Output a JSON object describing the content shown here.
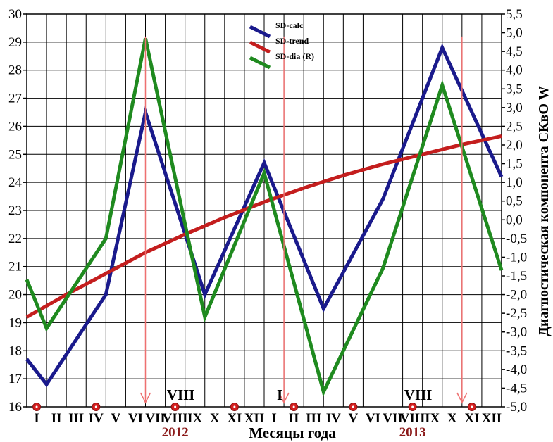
{
  "chart_data": {
    "type": "line",
    "xlabel": "Месяцы года",
    "y2label": "Диагностическая компонента СКвО W",
    "ylim": [
      16,
      30
    ],
    "y2lim": [
      -5.0,
      5.5
    ],
    "yticks": [
      "16",
      "17",
      "18",
      "19",
      "20",
      "21",
      "22",
      "23",
      "24",
      "25",
      "26",
      "27",
      "28",
      "29",
      "30"
    ],
    "y2ticks": [
      "-5,0",
      "-4,5",
      "-4,0",
      "-3,5",
      "-3,0",
      "-2,5",
      "-2,0",
      "-1,5",
      "-1,0",
      "-0,5",
      "0,0",
      "0,5",
      "1,0",
      "1,5",
      "2,0",
      "2,5",
      "3,0",
      "3,5",
      "4,0",
      "4,5",
      "5,0",
      "5,5"
    ],
    "months": [
      "I",
      "II",
      "III",
      "IV",
      "V",
      "VI",
      "VII",
      "VIII",
      "IX",
      "X",
      "XI",
      "XII",
      "I",
      "II",
      "III",
      "IV",
      "V",
      "VI",
      "VII",
      "VIII",
      "IX",
      "X",
      "XI",
      "XII"
    ],
    "years": [
      {
        "label": "2012",
        "month_index": 7
      },
      {
        "label": "2013",
        "month_index": 19
      }
    ],
    "month_annotations": [
      {
        "label": "VIII",
        "month_index": 7
      },
      {
        "label": "I",
        "month_index": 12
      },
      {
        "label": "VIII",
        "month_index": 19
      }
    ],
    "red_markers_month_index": [
      0,
      3,
      7,
      10,
      13,
      16,
      19,
      22
    ],
    "arrows_month_index": [
      6,
      13,
      22
    ],
    "legend_placement": "top-center",
    "grid": true,
    "series": [
      {
        "name": "SD-calc",
        "color": "#1a1a8c",
        "axis": "left",
        "x": [
          0,
          1,
          4,
          6,
          9,
          12,
          15,
          18,
          21,
          24
        ],
        "y": [
          17.7,
          16.8,
          20.0,
          26.5,
          20.0,
          24.7,
          19.5,
          23.4,
          28.8,
          24.2
        ]
      },
      {
        "name": "SD-trend",
        "color": "#c41e1e",
        "axis": "left",
        "x": [
          0,
          2,
          4,
          6,
          8,
          10,
          12,
          14,
          16,
          18,
          20,
          22,
          24
        ],
        "y": [
          19.2,
          20.0,
          20.75,
          21.5,
          22.15,
          22.75,
          23.3,
          23.8,
          24.25,
          24.65,
          25.0,
          25.35,
          25.65
        ]
      },
      {
        "name": "SD-dia (R)",
        "color": "#1f8a1f",
        "axis": "right",
        "x": [
          0,
          1,
          4,
          6,
          9,
          12,
          15,
          18,
          21,
          24
        ],
        "y": [
          -1.6,
          -2.9,
          -0.5,
          4.85,
          -2.6,
          1.25,
          -4.6,
          -1.3,
          3.6,
          -1.35
        ]
      }
    ]
  }
}
